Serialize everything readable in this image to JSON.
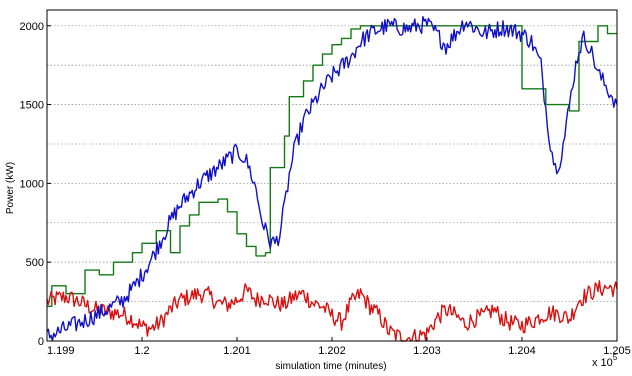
{
  "chart_data": {
    "type": "line",
    "xlabel": "simulation time (minutes)",
    "ylabel": "Power (kW)",
    "x_multiplier_label": "x 10",
    "x_multiplier_exponent": "5",
    "xlim": [
      119900,
      120500
    ],
    "ylim": [
      0,
      2100
    ],
    "x_ticks": [
      119900,
      120000,
      120100,
      120200,
      120300,
      120400,
      120500
    ],
    "x_tick_labels": [
      "1.199",
      "1.2",
      "1.201",
      "1.202",
      "1.203",
      "1.204",
      "1.205"
    ],
    "y_ticks": [
      0,
      500,
      1000,
      1500,
      2000
    ],
    "y_tick_labels": [
      "0",
      "500",
      "1000",
      "1500",
      "2000"
    ],
    "y_grid": [
      250,
      500,
      750,
      1000,
      1250,
      1500,
      1750,
      2000
    ],
    "grid": "horizontal dotted",
    "series": [
      {
        "color": "#1010c8",
        "noise": 55,
        "x": [
          119900,
          119910,
          119920,
          119940,
          119960,
          119980,
          119990,
          120000,
          120010,
          120020,
          120030,
          120040,
          120050,
          120060,
          120070,
          120080,
          120090,
          120095,
          120100,
          120105,
          120110,
          120115,
          120120,
          120125,
          120130,
          120135,
          120140,
          120145,
          120150,
          120155,
          120160,
          120165,
          120170,
          120180,
          120190,
          120200,
          120210,
          120220,
          120230,
          120240,
          120250,
          120260,
          120270,
          120280,
          120290,
          120300,
          120310,
          120320,
          120330,
          120340,
          120350,
          120360,
          120370,
          120380,
          120390,
          120400,
          120410,
          120420,
          120425,
          120430,
          120435,
          120440,
          120445,
          120450,
          120455,
          120460,
          120465,
          120470,
          120475,
          120480,
          120485,
          120490,
          120495,
          120500
        ],
        "y": [
          30,
          50,
          80,
          130,
          190,
          260,
          330,
          420,
          520,
          640,
          760,
          860,
          930,
          1000,
          1050,
          1100,
          1150,
          1180,
          1200,
          1180,
          1140,
          1060,
          960,
          800,
          700,
          630,
          620,
          680,
          850,
          1050,
          1200,
          1300,
          1400,
          1500,
          1600,
          1680,
          1740,
          1800,
          1900,
          1950,
          1980,
          2000,
          1990,
          1980,
          2000,
          2010,
          1950,
          1870,
          1950,
          2030,
          1990,
          1950,
          1970,
          1990,
          1970,
          1950,
          1900,
          1750,
          1480,
          1250,
          1100,
          1150,
          1300,
          1500,
          1700,
          1850,
          1920,
          1880,
          1800,
          1700,
          1650,
          1600,
          1550,
          1500
        ]
      },
      {
        "color": "#157a15",
        "noise": 0,
        "x": [
          119900,
          119905,
          119905,
          119920,
          119920,
          119940,
          119940,
          119955,
          119955,
          119970,
          119970,
          119990,
          119990,
          120000,
          120000,
          120015,
          120015,
          120030,
          120030,
          120040,
          120040,
          120050,
          120050,
          120060,
          120060,
          120080,
          120080,
          120090,
          120090,
          120100,
          120100,
          120110,
          120110,
          120120,
          120120,
          120130,
          120130,
          120135,
          120135,
          120150,
          120150,
          120155,
          120155,
          120170,
          120170,
          120180,
          120180,
          120190,
          120190,
          120200,
          120200,
          120210,
          120210,
          120220,
          120220,
          120230,
          120230,
          120400,
          120400,
          120425,
          120425,
          120450,
          120450,
          120460,
          120460,
          120480,
          120480,
          120490,
          120490,
          120500
        ],
        "y": [
          220,
          220,
          350,
          350,
          300,
          300,
          450,
          450,
          420,
          420,
          500,
          500,
          560,
          560,
          620,
          620,
          700,
          700,
          560,
          560,
          730,
          730,
          800,
          800,
          880,
          880,
          900,
          900,
          820,
          820,
          680,
          680,
          600,
          600,
          540,
          540,
          560,
          560,
          1100,
          1100,
          1300,
          1300,
          1550,
          1550,
          1650,
          1650,
          1750,
          1750,
          1820,
          1820,
          1880,
          1880,
          1920,
          1920,
          1980,
          1980,
          2000,
          2000,
          1600,
          1600,
          1500,
          1500,
          1460,
          1460,
          1900,
          1900,
          2000,
          2000,
          1950,
          1950
        ]
      },
      {
        "color": "#d81010",
        "noise": 55,
        "x": [
          119900,
          119910,
          119920,
          119930,
          119940,
          119950,
          119960,
          119970,
          119980,
          119990,
          120000,
          120010,
          120020,
          120030,
          120040,
          120050,
          120060,
          120070,
          120080,
          120090,
          120100,
          120110,
          120120,
          120130,
          120140,
          120150,
          120160,
          120170,
          120180,
          120190,
          120200,
          120210,
          120220,
          120230,
          120240,
          120250,
          120260,
          120270,
          120280,
          120290,
          120300,
          120310,
          120320,
          120330,
          120340,
          120350,
          120360,
          120370,
          120380,
          120390,
          120400,
          120410,
          120420,
          120430,
          120440,
          120450,
          120460,
          120470,
          120480,
          120490,
          120500
        ],
        "y": [
          250,
          270,
          280,
          260,
          230,
          200,
          190,
          180,
          170,
          140,
          90,
          80,
          120,
          200,
          260,
          280,
          300,
          290,
          240,
          230,
          260,
          320,
          260,
          280,
          240,
          230,
          280,
          300,
          240,
          220,
          160,
          120,
          240,
          300,
          220,
          160,
          60,
          30,
          20,
          30,
          50,
          140,
          200,
          160,
          110,
          140,
          160,
          200,
          140,
          110,
          100,
          120,
          160,
          180,
          170,
          140,
          260,
          300,
          330,
          340,
          330
        ]
      }
    ]
  }
}
